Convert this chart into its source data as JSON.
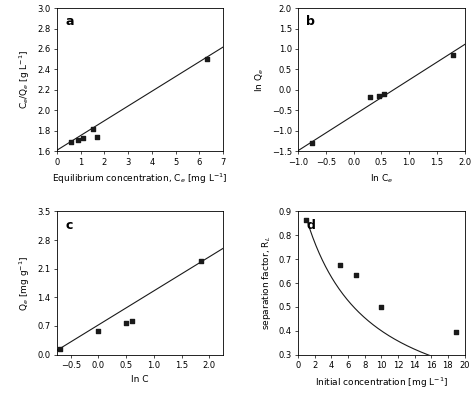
{
  "panel_a": {
    "label": "a",
    "scatter_x": [
      0.6,
      0.9,
      1.1,
      1.5,
      1.7,
      6.3
    ],
    "scatter_y": [
      1.69,
      1.71,
      1.73,
      1.82,
      1.74,
      2.5
    ],
    "line_x": [
      0.0,
      7.0
    ],
    "line_y": [
      1.61,
      2.62
    ],
    "xlabel": "Equilibrium concentration, C$_e$ [mg L$^{-1}$]",
    "ylabel": "C$_e$/Q$_e$ [g L$^{-1}$]",
    "xlim": [
      0,
      7
    ],
    "ylim": [
      1.6,
      3.0
    ],
    "yticks": [
      1.6,
      1.8,
      2.0,
      2.2,
      2.4,
      2.6,
      2.8,
      3.0
    ],
    "xticks": [
      0,
      1,
      2,
      3,
      4,
      5,
      6,
      7
    ]
  },
  "panel_b": {
    "label": "b",
    "scatter_x": [
      -0.75,
      0.3,
      0.45,
      0.55,
      1.8
    ],
    "scatter_y": [
      -1.3,
      -0.18,
      -0.14,
      -0.1,
      0.85
    ],
    "line_x": [
      -1.1,
      2.2
    ],
    "line_y": [
      -1.57,
      1.28
    ],
    "xlabel": "ln C$_e$",
    "ylabel": "ln Q$_e$",
    "xlim": [
      -1.0,
      2.0
    ],
    "ylim": [
      -1.5,
      2.0
    ],
    "yticks": [
      -1.5,
      -1.0,
      -0.5,
      0.0,
      0.5,
      1.0,
      1.5,
      2.0
    ],
    "xticks": [
      -1.0,
      -0.5,
      0.0,
      0.5,
      1.0,
      1.5,
      2.0
    ]
  },
  "panel_c": {
    "label": "c",
    "scatter_x": [
      -0.7,
      0.0,
      0.5,
      0.6,
      1.85
    ],
    "scatter_y": [
      0.15,
      0.57,
      0.77,
      0.82,
      2.3
    ],
    "line_x": [
      -0.85,
      2.25
    ],
    "line_y": [
      0.02,
      2.6
    ],
    "xlabel": "ln C",
    "ylabel": "Q$_e$ [mg g$^{-1}$]",
    "xlim": [
      -0.75,
      2.25
    ],
    "ylim": [
      0.0,
      3.5
    ],
    "yticks": [
      0.0,
      0.7,
      1.4,
      2.1,
      2.8,
      3.5
    ],
    "xticks": [
      -0.5,
      0.0,
      0.5,
      1.0,
      1.5,
      2.0
    ]
  },
  "panel_d": {
    "label": "d",
    "scatter_x": [
      1,
      5,
      7,
      10,
      19
    ],
    "scatter_y": [
      0.865,
      0.675,
      0.635,
      0.5,
      0.395
    ],
    "curve_x_start": 1,
    "curve_x_end": 20,
    "curve_KL": 0.15,
    "xlabel": "Initial concentration [mg L$^{-1}$]",
    "ylabel": "separation factor, R$_L$",
    "xlim": [
      0,
      20
    ],
    "ylim": [
      0.3,
      0.9
    ],
    "yticks": [
      0.3,
      0.4,
      0.5,
      0.6,
      0.7,
      0.8,
      0.9
    ],
    "xticks": [
      0,
      2,
      4,
      6,
      8,
      10,
      12,
      14,
      16,
      18,
      20
    ]
  },
  "background_color": "#ffffff",
  "line_color": "#1a1a1a",
  "scatter_color": "#1a1a1a",
  "font_size": 6.5
}
